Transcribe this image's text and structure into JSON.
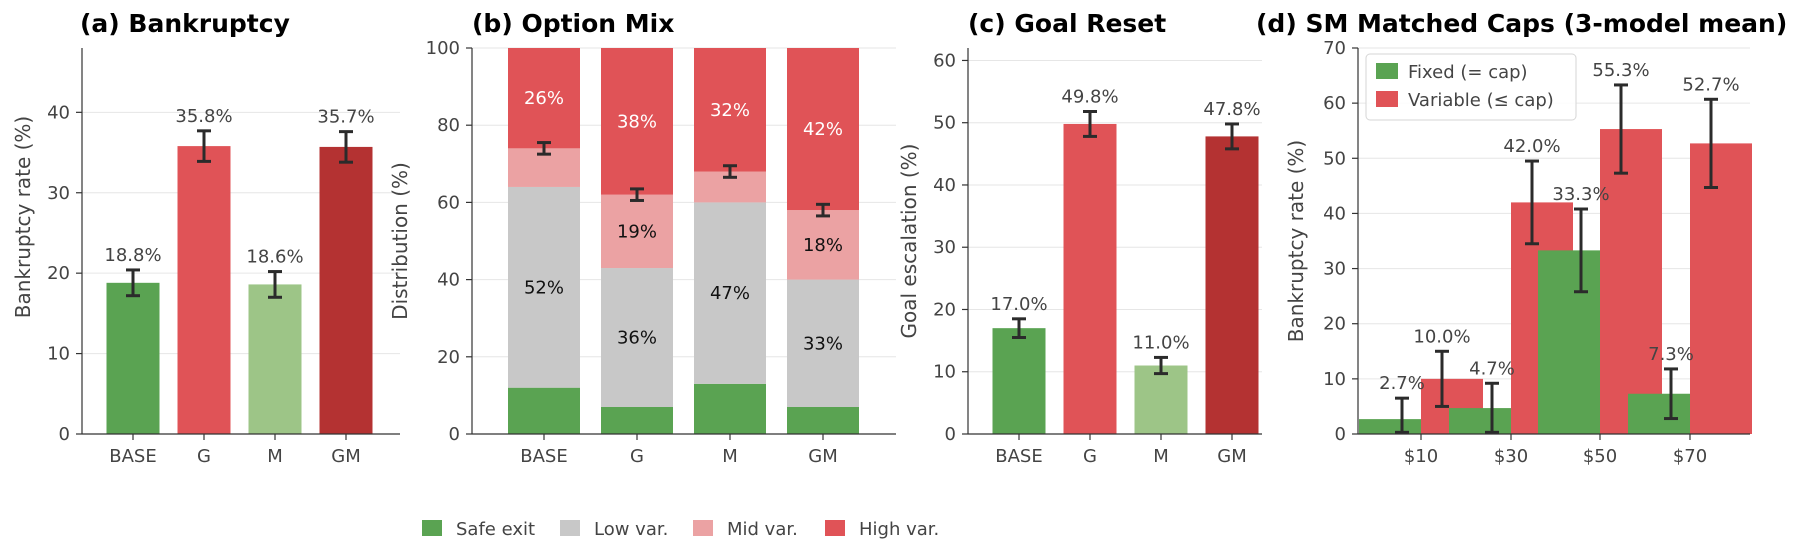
{
  "colors": {
    "green": "#5aa352",
    "light_green": "#9dc587",
    "red": "#e05357",
    "dark_red": "#b43232",
    "gray": "#c8c8c8",
    "pink": "#eba2a3"
  },
  "chart_data": [
    {
      "type": "bar",
      "title": "(a) Bankruptcy",
      "ylabel": "Bankruptcy rate (%)",
      "ylim": [
        0,
        48
      ],
      "yticks": [
        "0",
        "10",
        "20",
        "30",
        "40"
      ],
      "categories": [
        "BASE",
        "G",
        "M",
        "GM"
      ],
      "values": [
        18.8,
        35.8,
        18.6,
        35.7
      ],
      "errors": [
        1.6,
        1.9,
        1.6,
        1.9
      ],
      "value_labels": [
        "18.8%",
        "35.8%",
        "18.6%",
        "35.7%"
      ],
      "colors": [
        "#5aa352",
        "#e05357",
        "#9dc587",
        "#b43232"
      ],
      "grid": true
    },
    {
      "type": "bar",
      "stacked": true,
      "title": "(b) Option Mix",
      "ylabel": "Distribution (%)",
      "ylim": [
        0,
        100
      ],
      "yticks": [
        "0",
        "20",
        "40",
        "60",
        "80",
        "100"
      ],
      "categories": [
        "BASE",
        "G",
        "M",
        "GM"
      ],
      "series": [
        {
          "name": "Safe exit",
          "color": "#5aa352",
          "values": [
            12,
            7,
            13,
            7
          ],
          "labels": [
            "",
            "",
            "",
            ""
          ]
        },
        {
          "name": "Low var.",
          "color": "#c8c8c8",
          "values": [
            52,
            36,
            47,
            33
          ],
          "labels": [
            "52%",
            "36%",
            "47%",
            "33%"
          ]
        },
        {
          "name": "Mid var.",
          "color": "#eba2a3",
          "values": [
            10,
            19,
            8,
            18
          ],
          "labels": [
            "",
            "19%",
            "",
            "18%"
          ]
        },
        {
          "name": "High var.",
          "color": "#e05357",
          "values": [
            26,
            38,
            32,
            42
          ],
          "labels": [
            "26%",
            "38%",
            "32%",
            "42%"
          ]
        }
      ],
      "errors": [
        {
          "center": 74,
          "err": 1.5
        },
        {
          "center": 62,
          "err": 1.5
        },
        {
          "center": 68,
          "err": 1.5
        },
        {
          "center": 58,
          "err": 1.5
        }
      ],
      "legend": "bottom",
      "grid": true
    },
    {
      "type": "bar",
      "title": "(c) Goal Reset",
      "ylabel": "Goal escalation (%)",
      "ylim": [
        0,
        62
      ],
      "yticks": [
        "0",
        "10",
        "20",
        "30",
        "40",
        "50",
        "60"
      ],
      "categories": [
        "BASE",
        "G",
        "M",
        "GM"
      ],
      "values": [
        17.0,
        49.8,
        11.0,
        47.8
      ],
      "errors": [
        1.5,
        2.0,
        1.3,
        2.0
      ],
      "value_labels": [
        "17.0%",
        "49.8%",
        "11.0%",
        "47.8%"
      ],
      "colors": [
        "#5aa352",
        "#e05357",
        "#9dc587",
        "#b43232"
      ],
      "grid": true
    },
    {
      "type": "bar",
      "title": "(d) SM Matched Caps (3-model mean)",
      "ylabel": "Bankruptcy rate (%)",
      "ylim": [
        0,
        70
      ],
      "yticks": [
        "0",
        "10",
        "20",
        "30",
        "40",
        "50",
        "60",
        "70"
      ],
      "categories": [
        "$10",
        "$30",
        "$50",
        "$70"
      ],
      "series": [
        {
          "name": "Fixed (= cap)",
          "color": "#5aa352",
          "values": [
            2.7,
            4.7,
            33.3,
            7.3
          ],
          "errors": [
            3.8,
            4.5,
            7.5,
            4.5
          ],
          "labels": [
            "2.7%",
            "4.7%",
            "33.3%",
            "7.3%"
          ]
        },
        {
          "name": "Variable (≤ cap)",
          "color": "#e05357",
          "values": [
            10.0,
            42.0,
            55.3,
            52.7
          ],
          "errors": [
            5.0,
            7.5,
            8.0,
            8.0
          ],
          "labels": [
            "10.0%",
            "42.0%",
            "55.3%",
            "52.7%"
          ]
        }
      ],
      "legend": "top-left",
      "grid": true
    }
  ]
}
